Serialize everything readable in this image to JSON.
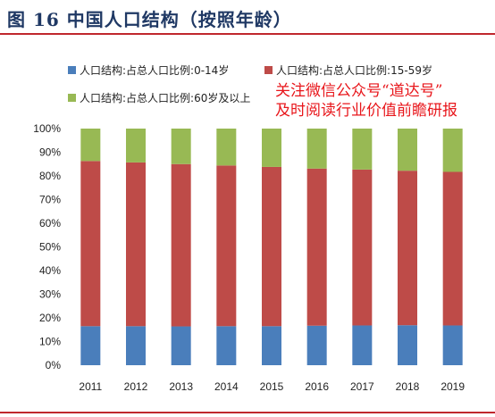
{
  "title": "图 16 中国人口结构（按照年龄）",
  "watermark": {
    "line1": "关注微信公众号“道达号”",
    "line2": "及时阅读行业价值前瞻研报"
  },
  "colors": {
    "series1": "#4a7ebb",
    "series2": "#be4b48",
    "series3": "#98b954",
    "accent": "#c0272d",
    "title": "#1f3864"
  },
  "chart_data": {
    "type": "bar",
    "stacked": true,
    "percent": true,
    "categories": [
      "2011",
      "2012",
      "2013",
      "2014",
      "2015",
      "2016",
      "2017",
      "2018",
      "2019"
    ],
    "series": [
      {
        "name": "人口结构:占总人口比例:0-14岁",
        "values": [
          16.5,
          16.5,
          16.4,
          16.5,
          16.5,
          16.7,
          16.8,
          16.9,
          16.8
        ]
      },
      {
        "name": "人口结构:占总人口比例:15-59岁",
        "values": [
          69.8,
          69.2,
          68.6,
          67.9,
          67.3,
          66.4,
          65.9,
          65.3,
          64.9
        ]
      },
      {
        "name": "人口结构:占总人口比例:60岁及以上",
        "values": [
          13.7,
          14.3,
          15.0,
          15.6,
          16.2,
          16.9,
          17.3,
          17.8,
          18.3
        ]
      }
    ],
    "yticks": [
      "0%",
      "10%",
      "20%",
      "30%",
      "40%",
      "50%",
      "60%",
      "70%",
      "80%",
      "90%",
      "100%"
    ],
    "ylim": [
      0,
      100
    ],
    "grid": false,
    "legend_position": "top"
  }
}
